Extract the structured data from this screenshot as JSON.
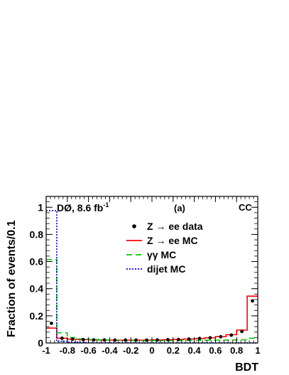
{
  "chart_data": {
    "type": "histogram",
    "title": "",
    "experiment_label": "DØ, 8.6 fb",
    "experiment_label_sup": "-1",
    "panel_label": "(a)",
    "region_label": "CC",
    "xlabel": "BDT",
    "ylabel": "Fraction of events/0.1",
    "xlim": [
      -1,
      1
    ],
    "ylim": [
      0,
      1.0
    ],
    "grid": false,
    "legend_position": "top-right",
    "x_ticks": [
      -1,
      -0.8,
      -0.6,
      -0.4,
      -0.2,
      0,
      0.2,
      0.4,
      0.6,
      0.8,
      1
    ],
    "x_tick_labels": [
      "-1",
      "-0.8",
      "-0.6",
      "-0.4",
      "-0.2",
      "0",
      "0.2",
      "0.4",
      "0.6",
      "0.8",
      "1"
    ],
    "y_ticks": [
      0,
      0.2,
      0.4,
      0.6,
      0.8,
      1
    ],
    "y_tick_labels": [
      "0",
      "0.2",
      "0.4",
      "0.6",
      "0.8",
      "1"
    ],
    "bin_edges": [
      -1.0,
      -0.9,
      -0.8,
      -0.7,
      -0.6,
      -0.5,
      -0.4,
      -0.3,
      -0.2,
      -0.1,
      0.0,
      0.1,
      0.2,
      0.3,
      0.4,
      0.5,
      0.6,
      0.7,
      0.8,
      0.9,
      1.0
    ],
    "series": [
      {
        "name": "Z → ee data",
        "style": "points",
        "color": "#000000",
        "x": [
          -0.95,
          -0.85,
          -0.75,
          -0.65,
          -0.55,
          -0.45,
          -0.35,
          -0.25,
          -0.15,
          -0.05,
          0.05,
          0.15,
          0.25,
          0.35,
          0.45,
          0.55,
          0.65,
          0.75,
          0.85,
          0.95
        ],
        "values": [
          0.145,
          0.035,
          0.028,
          0.025,
          0.023,
          0.022,
          0.021,
          0.021,
          0.021,
          0.021,
          0.022,
          0.024,
          0.026,
          0.029,
          0.033,
          0.038,
          0.046,
          0.058,
          0.085,
          0.31
        ]
      },
      {
        "name": "Z → ee MC",
        "style": "step",
        "color": "#ff0000",
        "dash": "",
        "values": [
          0.11,
          0.035,
          0.028,
          0.025,
          0.023,
          0.022,
          0.021,
          0.021,
          0.021,
          0.021,
          0.022,
          0.024,
          0.026,
          0.029,
          0.033,
          0.038,
          0.047,
          0.061,
          0.095,
          0.345
        ]
      },
      {
        "name": "γγ MC",
        "style": "step",
        "color": "#00cc00",
        "dash": "8,5",
        "values": [
          0.615,
          0.075,
          0.04,
          0.03,
          0.026,
          0.022,
          0.02,
          0.018,
          0.018,
          0.017,
          0.017,
          0.017,
          0.018,
          0.018,
          0.019,
          0.02,
          0.021,
          0.022,
          0.024,
          0.035
        ]
      },
      {
        "name": "dijet MC",
        "style": "step",
        "color": "#0000cc",
        "dash": "2,2",
        "values": [
          0.975,
          0.012,
          0.006,
          0.004,
          0.002,
          0.001,
          0.001,
          0.001,
          0.0005,
          0.0005,
          0.0005,
          0.0005,
          0.0005,
          0.0005,
          0.0005,
          0.0005,
          0.0005,
          0.0005,
          0.0005,
          0.0005
        ]
      }
    ]
  }
}
